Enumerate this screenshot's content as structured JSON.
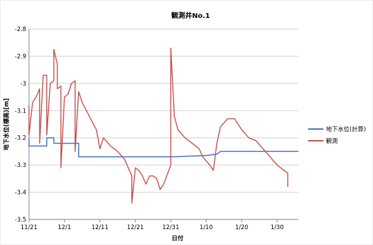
{
  "chart_data": {
    "type": "line",
    "title": "観測井No.1",
    "xlabel": "日付",
    "ylabel": "地下水位(標高)[m]",
    "ylim": [
      -3.5,
      -2.8
    ],
    "yticks": [
      -2.8,
      -2.9,
      -3,
      -3.1,
      -3.2,
      -3.3,
      -3.4,
      -3.5
    ],
    "x_domain": [
      "2012-11-21",
      "2013-02-05"
    ],
    "xticks": [
      {
        "date": "2012-11-21",
        "label": "11/21"
      },
      {
        "date": "2012-12-01",
        "label": "12/1"
      },
      {
        "date": "2012-12-11",
        "label": "12/11"
      },
      {
        "date": "2012-12-21",
        "label": "12/21"
      },
      {
        "date": "2012-12-31",
        "label": "12/31"
      },
      {
        "date": "2013-01-10",
        "label": "1/10"
      },
      {
        "date": "2013-01-20",
        "label": "1/20"
      },
      {
        "date": "2013-01-30",
        "label": "1/30"
      }
    ],
    "grid": "horizontal",
    "legend_position": "right",
    "series": [
      {
        "name": "地下水位(計算)",
        "color": "#4472C4",
        "step": true,
        "points": [
          [
            "2012-11-21",
            -3.2
          ],
          [
            "2012-11-21",
            -3.23
          ],
          [
            "2012-11-26",
            -3.23
          ],
          [
            "2012-11-26",
            -3.2
          ],
          [
            "2012-11-28",
            -3.2
          ],
          [
            "2012-11-28",
            -3.22
          ],
          [
            "2012-12-05",
            -3.22
          ],
          [
            "2012-12-05",
            -3.27
          ],
          [
            "2012-12-31",
            -3.27
          ],
          [
            "2013-01-10",
            -3.265
          ],
          [
            "2013-01-13",
            -3.26
          ],
          [
            "2013-01-14",
            -3.25
          ],
          [
            "2013-02-05",
            -3.25
          ]
        ]
      },
      {
        "name": "観測",
        "color": "#C0504D",
        "step": false,
        "points": [
          [
            "2012-11-21",
            -3.08
          ],
          [
            "2012-11-21",
            -3.19
          ],
          [
            "2012-11-22",
            -3.07
          ],
          [
            "2012-11-23",
            -3.05
          ],
          [
            "2012-11-24",
            -3.02
          ],
          [
            "2012-11-24",
            -3.22
          ],
          [
            "2012-11-25",
            -2.97
          ],
          [
            "2012-11-26",
            -2.97
          ],
          [
            "2012-11-26",
            -3.19
          ],
          [
            "2012-11-27",
            -3.0
          ],
          [
            "2012-11-28",
            -2.99
          ],
          [
            "2012-11-28",
            -2.875
          ],
          [
            "2012-11-29",
            -2.93
          ],
          [
            "2012-11-29",
            -3.02
          ],
          [
            "2012-11-30",
            -3.01
          ],
          [
            "2012-11-30",
            -3.31
          ],
          [
            "2012-12-01",
            -3.05
          ],
          [
            "2012-12-02",
            -3.04
          ],
          [
            "2012-12-03",
            -3.0
          ],
          [
            "2012-12-04",
            -2.99
          ],
          [
            "2012-12-04",
            -3.25
          ],
          [
            "2012-12-05",
            -3.03
          ],
          [
            "2012-12-06",
            -3.07
          ],
          [
            "2012-12-08",
            -3.12
          ],
          [
            "2012-12-10",
            -3.17
          ],
          [
            "2012-12-11",
            -3.24
          ],
          [
            "2012-12-12",
            -3.2
          ],
          [
            "2012-12-14",
            -3.23
          ],
          [
            "2012-12-16",
            -3.25
          ],
          [
            "2012-12-18",
            -3.28
          ],
          [
            "2012-12-19",
            -3.31
          ],
          [
            "2012-12-20",
            -3.34
          ],
          [
            "2012-12-20",
            -3.44
          ],
          [
            "2012-12-21",
            -3.31
          ],
          [
            "2012-12-22",
            -3.32
          ],
          [
            "2012-12-23",
            -3.34
          ],
          [
            "2012-12-24",
            -3.37
          ],
          [
            "2012-12-25",
            -3.34
          ],
          [
            "2012-12-26",
            -3.34
          ],
          [
            "2012-12-27",
            -3.35
          ],
          [
            "2012-12-28",
            -3.39
          ],
          [
            "2012-12-29",
            -3.37
          ],
          [
            "2012-12-31",
            -3.3
          ],
          [
            "2012-12-31",
            -2.87
          ],
          [
            "2013-01-01",
            -3.12
          ],
          [
            "2013-01-02",
            -3.17
          ],
          [
            "2013-01-04",
            -3.2
          ],
          [
            "2013-01-06",
            -3.22
          ],
          [
            "2013-01-08",
            -3.24
          ],
          [
            "2013-01-09",
            -3.27
          ],
          [
            "2013-01-11",
            -3.3
          ],
          [
            "2013-01-12",
            -3.32
          ],
          [
            "2013-01-13",
            -3.22
          ],
          [
            "2013-01-14",
            -3.16
          ],
          [
            "2013-01-16",
            -3.13
          ],
          [
            "2013-01-18",
            -3.13
          ],
          [
            "2013-01-20",
            -3.17
          ],
          [
            "2013-01-22",
            -3.2
          ],
          [
            "2013-01-24",
            -3.21
          ],
          [
            "2013-01-26",
            -3.24
          ],
          [
            "2013-01-28",
            -3.27
          ],
          [
            "2013-01-30",
            -3.3
          ],
          [
            "2013-02-01",
            -3.32
          ],
          [
            "2013-02-02",
            -3.33
          ],
          [
            "2013-02-02",
            -3.38
          ]
        ]
      }
    ]
  }
}
